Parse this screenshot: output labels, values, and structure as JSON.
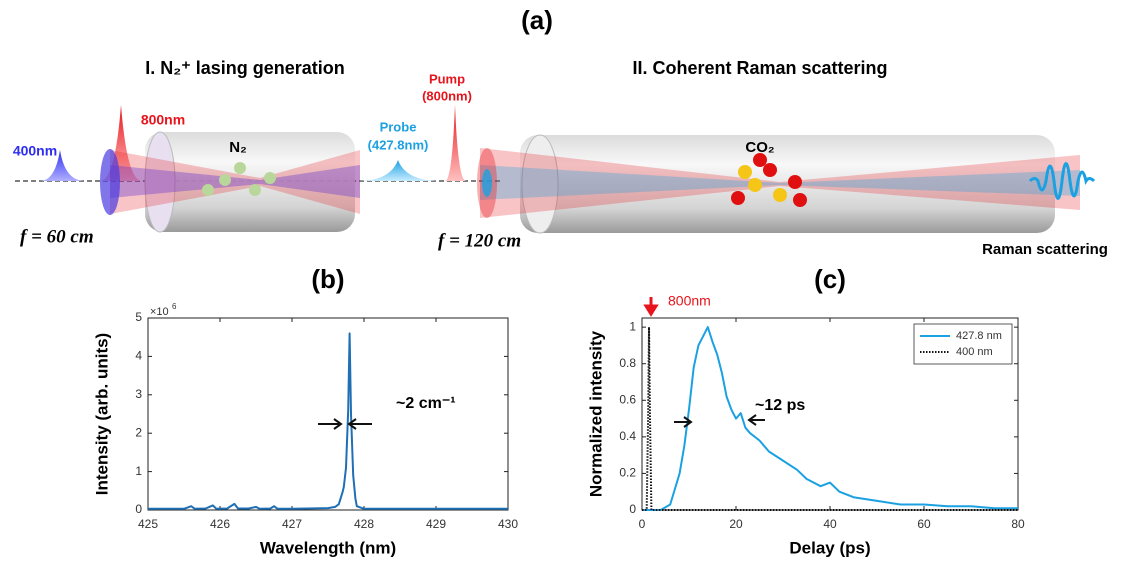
{
  "diagram": {
    "panel_label": "(a)",
    "section_1": "I. N₂⁺ lasing generation",
    "section_2": "II. Coherent Raman scattering",
    "label_400": "400nm",
    "label_800": "800nm",
    "cell_1": "N₂",
    "probe": "Probe",
    "probe_wavelength": "(427.8nm)",
    "pump": "Pump",
    "pump_wavelength": "(800nm)",
    "cell_2": "CO₂",
    "focal_1": "f = 60 cm",
    "focal_2": "f = 120 cm",
    "output": "Raman scattering"
  },
  "chart_data": [
    {
      "type": "line",
      "title": "(b)",
      "xlabel": "Wavelength (nm)",
      "ylabel": "Intensity (arb. units)",
      "y_multiplier": "×10",
      "y_exponent": "6",
      "annotation": "~2 cm⁻¹",
      "color": "#1f6fb5",
      "x": [
        425,
        425.5,
        425.6,
        425.65,
        425.8,
        425.9,
        425.95,
        426.1,
        426.2,
        426.25,
        426.4,
        426.5,
        426.55,
        426.7,
        426.75,
        426.8,
        427,
        427.5,
        427.6,
        427.65,
        427.7,
        427.72,
        427.75,
        427.78,
        427.8,
        427.82,
        427.85,
        427.88,
        427.9,
        428,
        429,
        430
      ],
      "values": [
        0.03,
        0.03,
        0.1,
        0.03,
        0.04,
        0.12,
        0.03,
        0.04,
        0.16,
        0.04,
        0.04,
        0.08,
        0.03,
        0.04,
        0.1,
        0.03,
        0.03,
        0.05,
        0.08,
        0.15,
        0.45,
        0.6,
        1.1,
        2.6,
        4.6,
        2.5,
        0.9,
        0.3,
        0.1,
        0.03,
        0.03,
        0.03
      ],
      "xlim": [
        425,
        430
      ],
      "xticks": [
        425,
        426,
        427,
        428,
        429,
        430
      ],
      "ylim": [
        0,
        5
      ],
      "yticks": [
        0,
        1,
        2,
        3,
        4,
        5
      ],
      "grid": false
    },
    {
      "type": "line",
      "title": "(c)",
      "xlabel": "Delay (ps)",
      "ylabel": "Normalized intensity",
      "annotation": "~12 ps",
      "marker_label": "800nm",
      "marker_color": "#e8141b",
      "legend": "upper right",
      "series": [
        {
          "name": "427.8 nm",
          "color": "#1ba1e2",
          "linestyle": "solid",
          "x": [
            0,
            4,
            6,
            8,
            9,
            10,
            11,
            12,
            13,
            14,
            15,
            16,
            17,
            18,
            19,
            20,
            21,
            22,
            23,
            25,
            27,
            30,
            33,
            35,
            38,
            40,
            42,
            45,
            50,
            55,
            60,
            65,
            70,
            75,
            80
          ],
          "values": [
            0,
            0,
            0.03,
            0.2,
            0.35,
            0.55,
            0.78,
            0.9,
            0.95,
            1,
            0.92,
            0.85,
            0.75,
            0.62,
            0.55,
            0.5,
            0.53,
            0.45,
            0.42,
            0.38,
            0.32,
            0.27,
            0.22,
            0.17,
            0.13,
            0.15,
            0.1,
            0.07,
            0.05,
            0.03,
            0.03,
            0.02,
            0.02,
            0.01,
            0.01
          ]
        },
        {
          "name": "400 nm",
          "color": "#111111",
          "linestyle": "dotted",
          "x": [
            0,
            1,
            1.3,
            1.5,
            1.7,
            2,
            80
          ],
          "values": [
            0,
            0,
            0.5,
            1,
            0.5,
            0,
            0
          ]
        }
      ],
      "xlim": [
        0,
        80
      ],
      "xticks": [
        0,
        20,
        40,
        60,
        80
      ],
      "ylim": [
        0,
        1.05
      ],
      "yticks": [
        0,
        0.2,
        0.4,
        0.6,
        0.8,
        1
      ],
      "grid": false
    }
  ]
}
